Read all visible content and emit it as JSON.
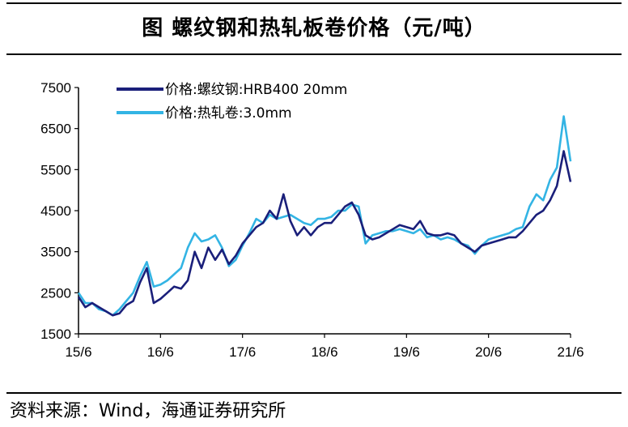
{
  "header": {
    "title": "图  螺纹钢和热轧板卷价格（元/吨）"
  },
  "footer": {
    "source": "资料来源：Wind，海通证券研究所"
  },
  "colors": {
    "rebar": "#1a1f7a",
    "hot_rolled": "#33b4e4"
  },
  "chart_data": {
    "type": "line",
    "title": "图  螺纹钢和热轧板卷价格（元/吨）",
    "xlabel": "",
    "ylabel": "",
    "x_ticks": [
      "15/6",
      "16/6",
      "17/6",
      "18/6",
      "19/6",
      "20/6",
      "21/6"
    ],
    "y_ticks": [
      1500,
      2500,
      3500,
      4500,
      5500,
      6500,
      7500
    ],
    "ylim": [
      1500,
      7500
    ],
    "xlim": [
      "2015-06",
      "2021-06"
    ],
    "grid": false,
    "legend": "top-left",
    "series": [
      {
        "name": "价格:螺纹钢:HRB400 20mm",
        "color": "#1a1f7a",
        "x": [
          "2015-06",
          "2015-07",
          "2015-08",
          "2015-09",
          "2015-10",
          "2015-11",
          "2015-12",
          "2016-01",
          "2016-02",
          "2016-03",
          "2016-04",
          "2016-05",
          "2016-06",
          "2016-07",
          "2016-08",
          "2016-09",
          "2016-10",
          "2016-11",
          "2016-12",
          "2017-01",
          "2017-02",
          "2017-03",
          "2017-04",
          "2017-05",
          "2017-06",
          "2017-07",
          "2017-08",
          "2017-09",
          "2017-10",
          "2017-11",
          "2017-12",
          "2018-01",
          "2018-02",
          "2018-03",
          "2018-04",
          "2018-05",
          "2018-06",
          "2018-07",
          "2018-08",
          "2018-09",
          "2018-10",
          "2018-11",
          "2018-12",
          "2019-01",
          "2019-02",
          "2019-03",
          "2019-04",
          "2019-05",
          "2019-06",
          "2019-07",
          "2019-08",
          "2019-09",
          "2019-10",
          "2019-11",
          "2019-12",
          "2020-01",
          "2020-02",
          "2020-03",
          "2020-04",
          "2020-05",
          "2020-06",
          "2020-07",
          "2020-08",
          "2020-09",
          "2020-10",
          "2020-11",
          "2020-12",
          "2021-01",
          "2021-02",
          "2021-03",
          "2021-04",
          "2021-05",
          "2021-06"
        ],
        "values": [
          2400,
          2150,
          2250,
          2150,
          2050,
          1950,
          2000,
          2200,
          2300,
          2750,
          3100,
          2250,
          2350,
          2500,
          2650,
          2600,
          2800,
          3500,
          3100,
          3600,
          3300,
          3550,
          3200,
          3400,
          3700,
          3900,
          4100,
          4200,
          4500,
          4300,
          4900,
          4250,
          3900,
          4100,
          3900,
          4100,
          4200,
          4200,
          4400,
          4600,
          4700,
          4400,
          3900,
          3800,
          3850,
          3950,
          4050,
          4150,
          4100,
          4050,
          4250,
          3950,
          3900,
          3900,
          3950,
          3900,
          3700,
          3600,
          3500,
          3650,
          3700,
          3750,
          3800,
          3850,
          3850,
          4000,
          4200,
          4400,
          4500,
          4750,
          5100,
          5950,
          5200
        ]
      },
      {
        "name": "价格:热轧卷:3.0mm",
        "color": "#33b4e4",
        "x": [
          "2015-06",
          "2015-07",
          "2015-08",
          "2015-09",
          "2015-10",
          "2015-11",
          "2015-12",
          "2016-01",
          "2016-02",
          "2016-03",
          "2016-04",
          "2016-05",
          "2016-06",
          "2016-07",
          "2016-08",
          "2016-09",
          "2016-10",
          "2016-11",
          "2016-12",
          "2017-01",
          "2017-02",
          "2017-03",
          "2017-04",
          "2017-05",
          "2017-06",
          "2017-07",
          "2017-08",
          "2017-09",
          "2017-10",
          "2017-11",
          "2017-12",
          "2018-01",
          "2018-02",
          "2018-03",
          "2018-04",
          "2018-05",
          "2018-06",
          "2018-07",
          "2018-08",
          "2018-09",
          "2018-10",
          "2018-11",
          "2018-12",
          "2019-01",
          "2019-02",
          "2019-03",
          "2019-04",
          "2019-05",
          "2019-06",
          "2019-07",
          "2019-08",
          "2019-09",
          "2019-10",
          "2019-11",
          "2019-12",
          "2020-01",
          "2020-02",
          "2020-03",
          "2020-04",
          "2020-05",
          "2020-06",
          "2020-07",
          "2020-08",
          "2020-09",
          "2020-10",
          "2020-11",
          "2020-12",
          "2021-01",
          "2021-02",
          "2021-03",
          "2021-04",
          "2021-05",
          "2021-06"
        ],
        "values": [
          2500,
          2250,
          2250,
          2100,
          2050,
          1950,
          2100,
          2300,
          2500,
          2900,
          3250,
          2650,
          2700,
          2800,
          2950,
          3100,
          3600,
          3950,
          3750,
          3800,
          3900,
          3600,
          3150,
          3300,
          3650,
          3950,
          4300,
          4200,
          4400,
          4300,
          4350,
          4400,
          4300,
          4200,
          4150,
          4300,
          4300,
          4350,
          4500,
          4500,
          4650,
          4600,
          3700,
          3900,
          3950,
          4000,
          4000,
          4050,
          4000,
          3950,
          4050,
          3850,
          3900,
          3800,
          3850,
          3800,
          3700,
          3650,
          3450,
          3650,
          3800,
          3850,
          3900,
          3950,
          4050,
          4100,
          4600,
          4900,
          4750,
          5250,
          5550,
          6800,
          5700
        ]
      }
    ]
  }
}
